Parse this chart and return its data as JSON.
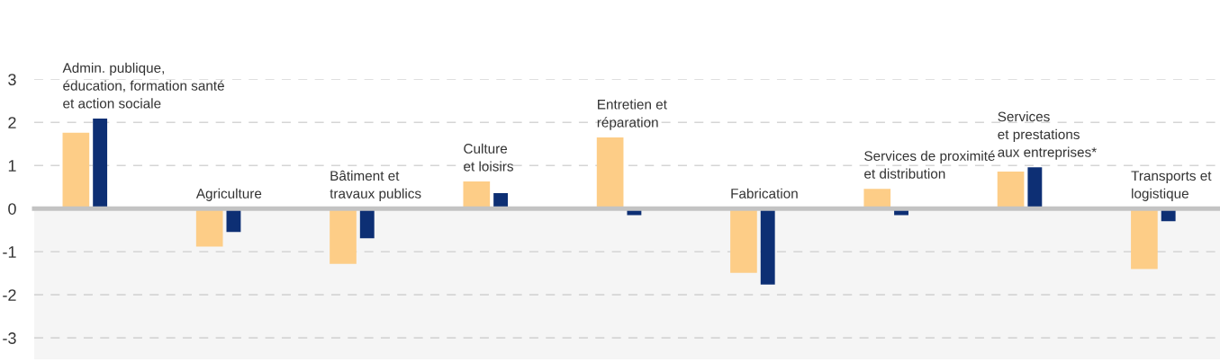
{
  "chart_data": {
    "type": "bar",
    "categories": [
      "Admin. publique,\néducation, formation santé\net action sociale",
      "Agriculture",
      "Bâtiment et\ntravaux publics",
      "Culture\net loisirs",
      "Entretien et\nréparation",
      "Fabrication",
      "Services de proximité\net distribution",
      "Services\net prestations\naux entreprises*",
      "Transports et\nlogistique"
    ],
    "series": [
      {
        "color": "#fdcd87",
        "values": [
          1.76,
          -0.88,
          -1.28,
          0.63,
          1.65,
          -1.49,
          0.46,
          0.86,
          -1.4
        ]
      },
      {
        "color": "#0d2f74",
        "values": [
          2.09,
          -0.54,
          -0.69,
          0.36,
          -0.15,
          -1.76,
          -0.15,
          0.96,
          -0.29
        ]
      }
    ],
    "ylim": [
      -3.5,
      3
    ],
    "yticks": [
      -3,
      -2,
      -1,
      0,
      1,
      2,
      3
    ],
    "grid": "y",
    "bands": [
      {
        "axis": "y",
        "from": -3.5,
        "to": 0,
        "color": "#f5f5f5"
      }
    ]
  }
}
